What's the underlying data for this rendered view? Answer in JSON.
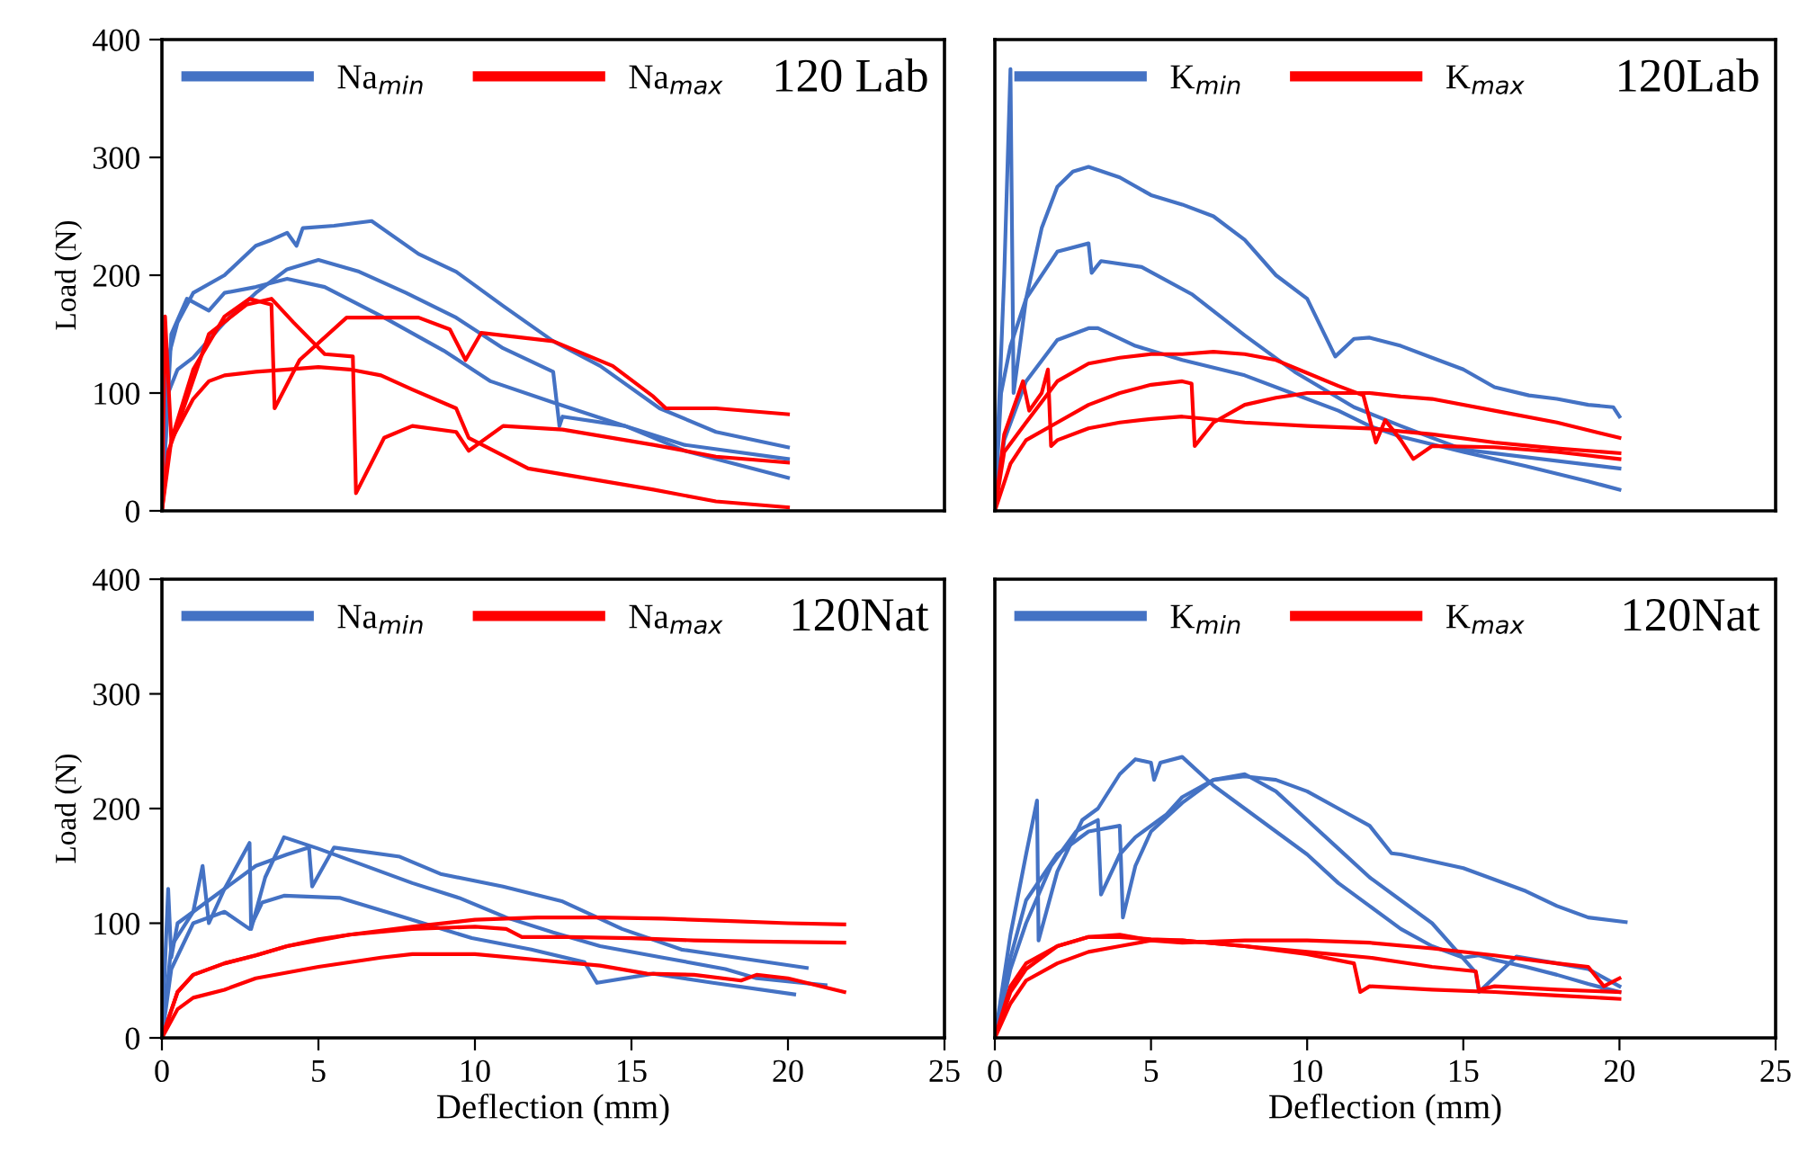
{
  "chart_data": [
    {
      "type": "line",
      "xlim": [
        0,
        25
      ],
      "ylim": [
        0,
        400
      ],
      "yticks": [
        0,
        100,
        200,
        300,
        400
      ],
      "ylabel": "Load (N)",
      "tick_labels": "y",
      "legend": "top left",
      "annotations": [
        "120 Lab"
      ],
      "series": [
        {
          "name": "Na$_{min}$",
          "color": "#4472c4",
          "x": [
            0,
            0.2,
            0.5,
            1,
            2,
            3,
            3.5,
            4,
            4.3,
            4.5,
            5.5,
            6.7,
            8.2,
            9.4,
            10.9,
            12.5,
            14,
            15.9,
            17.7,
            20
          ],
          "values": [
            0,
            130,
            160,
            185,
            200,
            225,
            230,
            236,
            225,
            240,
            242,
            246,
            218,
            203,
            174,
            144,
            123,
            87,
            67,
            54
          ]
        },
        {
          "color": "#4472c4",
          "x": [
            0,
            0.2,
            0.5,
            1,
            2,
            3,
            4,
            5,
            6.3,
            7.8,
            9.4,
            10.9,
            12.5,
            12.7,
            12.8,
            14.8,
            16.7,
            20
          ],
          "values": [
            0,
            100,
            120,
            130,
            160,
            185,
            205,
            213,
            203,
            185,
            164,
            138,
            118,
            72,
            80,
            72,
            56,
            44
          ]
        },
        {
          "color": "#4472c4",
          "x": [
            0,
            0.3,
            0.8,
            1.5,
            2,
            3,
            4,
            5.2,
            7.1,
            9,
            10.5,
            12.5,
            14.8,
            16.7,
            20
          ],
          "values": [
            0,
            150,
            180,
            170,
            185,
            190,
            197,
            190,
            164,
            136,
            110,
            92,
            72,
            51,
            28
          ]
        },
        {
          "name": "Na$_{max}$",
          "color": "#ff0000",
          "x": [
            0,
            0.1,
            0.3,
            1,
            2,
            2.8,
            3.5,
            3.6,
            4.4,
            5.9,
            8.2,
            9.2,
            9.7,
            10.2,
            12.5,
            14.4,
            15.7,
            16.1,
            17.7,
            20
          ],
          "values": [
            0,
            165,
            60,
            120,
            165,
            180,
            175,
            87,
            128,
            164,
            164,
            154,
            128,
            151,
            144,
            123,
            97,
            87,
            87,
            82
          ]
        },
        {
          "color": "#ff0000",
          "x": [
            0,
            0.2,
            0.6,
            1.5,
            2.7,
            3.5,
            4.2,
            5.2,
            6.1,
            6.2,
            7.1,
            8,
            9.4,
            9.8,
            10.9,
            12.8,
            15.7,
            17.7,
            20
          ],
          "values": [
            0,
            50,
            80,
            150,
            175,
            180,
            160,
            133,
            131,
            15,
            62,
            72,
            67,
            51,
            72,
            69,
            56,
            46,
            41
          ]
        },
        {
          "color": "#ff0000",
          "x": [
            0,
            0.3,
            1,
            1.5,
            2,
            3,
            4,
            5,
            6,
            7,
            8,
            9.4,
            9.8,
            11.7,
            15.7,
            17.7,
            20
          ],
          "values": [
            0,
            60,
            95,
            110,
            115,
            118,
            120,
            122,
            120,
            115,
            103,
            87,
            62,
            36,
            18,
            8,
            3
          ]
        }
      ]
    },
    {
      "type": "line",
      "xlim": [
        0,
        25
      ],
      "ylim": [
        0,
        400
      ],
      "tick_labels": false,
      "legend": "top left",
      "annotations": [
        "120Lab"
      ],
      "series": [
        {
          "name": "K$_{min}$",
          "color": "#4472c4",
          "x": [
            0,
            0.3,
            0.5,
            0.6,
            1,
            1.5,
            2,
            2.5,
            3,
            4,
            5,
            6,
            7,
            8,
            9,
            10,
            10.9,
            11.5,
            12,
            13,
            14,
            15,
            16,
            17.1,
            18,
            19,
            19.8,
            20
          ],
          "values": [
            0,
            200,
            375,
            100,
            180,
            240,
            275,
            288,
            292,
            283,
            268,
            260,
            250,
            230,
            200,
            180,
            131,
            146,
            147,
            140,
            130,
            120,
            105,
            98,
            95,
            90,
            88,
            80
          ]
        },
        {
          "color": "#4472c4",
          "x": [
            0,
            0.2,
            0.5,
            1,
            2,
            3,
            3.1,
            3.4,
            4.7,
            6.3,
            8,
            9.6,
            11.5,
            13,
            15,
            20
          ],
          "values": [
            0,
            100,
            140,
            180,
            220,
            227,
            202,
            212,
            207,
            184,
            149,
            118,
            88,
            72,
            52,
            36
          ]
        },
        {
          "color": "#4472c4",
          "x": [
            0,
            0.3,
            1,
            2,
            3,
            3.3,
            4.5,
            6,
            8,
            9.5,
            11,
            12,
            13,
            15,
            17,
            19,
            20
          ],
          "values": [
            0,
            60,
            110,
            145,
            155,
            155,
            140,
            128,
            115,
            100,
            85,
            72,
            63,
            50,
            38,
            25,
            18
          ]
        },
        {
          "name": "K$_{max}$",
          "color": "#ff0000",
          "x": [
            0,
            0.3,
            1,
            2,
            3,
            4,
            5,
            6,
            7,
            8,
            9,
            10,
            11,
            11.8,
            12.2,
            12.5,
            13,
            13.4,
            14,
            16,
            18,
            20
          ],
          "values": [
            0,
            50,
            75,
            110,
            125,
            130,
            133,
            133,
            135,
            133,
            128,
            117,
            106,
            98,
            58,
            77,
            60,
            44,
            55,
            54,
            50,
            44
          ]
        },
        {
          "color": "#ff0000",
          "x": [
            0,
            0.5,
            1,
            2,
            3,
            4,
            5,
            6,
            6.3,
            6.4,
            7,
            8,
            9,
            10,
            12,
            13,
            14,
            16,
            18,
            20
          ],
          "values": [
            0,
            40,
            60,
            75,
            90,
            100,
            107,
            110,
            108,
            55,
            75,
            90,
            96,
            100,
            100,
            97,
            95,
            85,
            75,
            62
          ]
        },
        {
          "color": "#ff0000",
          "x": [
            0,
            0.3,
            0.9,
            1.1,
            1.5,
            1.7,
            1.8,
            2,
            3,
            4,
            5,
            6,
            8,
            10,
            12,
            14,
            16,
            18,
            20
          ],
          "values": [
            0,
            65,
            110,
            85,
            100,
            120,
            55,
            60,
            70,
            75,
            78,
            80,
            75,
            72,
            70,
            65,
            58,
            53,
            49
          ]
        }
      ]
    },
    {
      "type": "line",
      "xlim": [
        0,
        25
      ],
      "xticks": [
        0,
        5,
        10,
        15,
        20,
        25
      ],
      "ylim": [
        0,
        400
      ],
      "yticks": [
        0,
        100,
        200,
        300,
        400
      ],
      "xlabel": "Deflection (mm)",
      "ylabel": "Load (N)",
      "legend": "top left",
      "annotations": [
        "120Nat"
      ],
      "series": [
        {
          "name": "Na$_{min}$",
          "color": "#4472c4",
          "x": [
            0,
            0.2,
            0.3,
            0.5,
            1,
            1.3,
            1.5,
            2,
            2.8,
            2.85,
            3.3,
            3.9,
            5,
            6,
            8,
            9.5,
            11,
            12.5,
            14,
            16,
            18,
            19,
            21.2
          ],
          "values": [
            0,
            130,
            70,
            100,
            110,
            150,
            100,
            130,
            170,
            95,
            140,
            175,
            165,
            155,
            135,
            122,
            105,
            92,
            80,
            70,
            60,
            52,
            46
          ]
        },
        {
          "color": "#4472c4",
          "x": [
            0,
            0.3,
            1,
            2,
            3,
            4,
            4.7,
            4.8,
            5.5,
            7.6,
            8.9,
            10.9,
            12.8,
            14.7,
            16.6,
            18.6,
            20.6
          ],
          "values": [
            0,
            80,
            110,
            130,
            150,
            160,
            166,
            132,
            166,
            158,
            143,
            132,
            119,
            95,
            77,
            69,
            61
          ]
        },
        {
          "color": "#4472c4",
          "x": [
            0,
            0.3,
            1,
            2,
            2.8,
            3.2,
            3.9,
            5.7,
            8,
            9.9,
            11.8,
            13.5,
            13.9,
            15.7,
            17.6,
            20.2
          ],
          "values": [
            0,
            60,
            100,
            110,
            95,
            118,
            124,
            122,
            103,
            87,
            77,
            66,
            48,
            56,
            48,
            38
          ]
        },
        {
          "name": "Na$_{max}$",
          "color": "#ff0000",
          "x": [
            0,
            0.5,
            1,
            2,
            3,
            4,
            5,
            6,
            8,
            10,
            12,
            14,
            16,
            18,
            20,
            21.8
          ],
          "values": [
            0,
            40,
            55,
            65,
            72,
            80,
            86,
            90,
            97,
            103,
            105,
            105,
            104,
            102,
            100,
            99
          ]
        },
        {
          "color": "#ff0000",
          "x": [
            0,
            0.5,
            1,
            2,
            3,
            4,
            5,
            6,
            8,
            10,
            11,
            11.5,
            13,
            15,
            17,
            19,
            21.8
          ],
          "values": [
            0,
            40,
            55,
            65,
            72,
            80,
            85,
            90,
            95,
            97,
            95,
            88,
            88,
            87,
            85,
            84,
            83
          ]
        },
        {
          "color": "#ff0000",
          "x": [
            0,
            0.5,
            1,
            2,
            3,
            5,
            7,
            8,
            10,
            12,
            14,
            15.5,
            17,
            18.5,
            19,
            20,
            21.8
          ],
          "values": [
            0,
            25,
            35,
            42,
            52,
            62,
            70,
            73,
            73,
            68,
            63,
            56,
            55,
            50,
            55,
            52,
            40
          ]
        }
      ]
    },
    {
      "type": "line",
      "xlim": [
        0,
        25
      ],
      "xticks": [
        0,
        5,
        10,
        15,
        20,
        25
      ],
      "ylim": [
        0,
        400
      ],
      "xlabel": "Deflection (mm)",
      "tick_labels": "x",
      "legend": "top left",
      "annotations": [
        "120Nat"
      ],
      "series": [
        {
          "name": "K$_{min}$",
          "color": "#4472c4",
          "x": [
            0,
            0.5,
            1,
            1.35,
            1.4,
            2,
            2.8,
            3.3,
            4,
            4.5,
            5,
            5.1,
            5.3,
            6,
            7,
            8,
            9,
            10,
            11,
            12,
            13,
            14,
            15,
            15.5,
            16,
            17,
            18,
            19,
            20
          ],
          "values": [
            0,
            90,
            160,
            207,
            85,
            145,
            190,
            200,
            230,
            243,
            240,
            225,
            240,
            245,
            220,
            200,
            180,
            160,
            135,
            115,
            95,
            80,
            70,
            72,
            68,
            62,
            55,
            47,
            40
          ]
        },
        {
          "color": "#4472c4",
          "x": [
            0,
            0.5,
            1,
            1.8,
            2.6,
            3.3,
            3.4,
            4,
            4.5,
            5.5,
            6,
            7,
            8,
            9,
            10,
            11,
            12,
            12.7,
            13,
            15,
            17,
            18,
            19,
            20.2
          ],
          "values": [
            0,
            60,
            100,
            150,
            180,
            190,
            125,
            160,
            175,
            195,
            210,
            225,
            228,
            225,
            215,
            200,
            185,
            161,
            160,
            148,
            128,
            115,
            105,
            101
          ]
        },
        {
          "color": "#4472c4",
          "x": [
            0,
            0.5,
            1,
            2,
            3,
            4,
            4.1,
            4.5,
            5,
            6,
            6.5,
            7,
            8,
            9,
            10,
            11,
            12,
            13,
            14,
            15.4,
            15.5,
            16.7,
            18,
            19,
            20
          ],
          "values": [
            0,
            70,
            120,
            160,
            180,
            185,
            105,
            150,
            180,
            205,
            215,
            225,
            230,
            215,
            190,
            165,
            140,
            120,
            100,
            57,
            40,
            71,
            65,
            60,
            45
          ]
        },
        {
          "name": "K$_{max}$",
          "color": "#ff0000",
          "x": [
            0,
            0.5,
            1,
            2,
            3,
            4,
            5,
            6,
            8,
            10,
            12,
            14,
            16,
            18,
            19,
            19.5,
            20
          ],
          "values": [
            0,
            45,
            65,
            80,
            88,
            90,
            85,
            83,
            85,
            85,
            83,
            78,
            72,
            65,
            62,
            45,
            52
          ]
        },
        {
          "color": "#ff0000",
          "x": [
            0,
            0.5,
            1,
            2,
            3,
            4,
            5,
            6,
            8,
            10,
            11.5,
            11.7,
            12,
            14,
            16,
            18,
            20
          ],
          "values": [
            0,
            30,
            50,
            65,
            75,
            80,
            85,
            85,
            80,
            73,
            65,
            40,
            45,
            42,
            40,
            37,
            34
          ]
        },
        {
          "color": "#ff0000",
          "x": [
            0,
            0.5,
            1,
            2,
            3,
            4,
            5,
            6,
            8,
            10,
            12,
            14,
            15.4,
            15.5,
            16,
            18,
            20
          ],
          "values": [
            0,
            40,
            60,
            80,
            88,
            88,
            86,
            85,
            80,
            75,
            70,
            62,
            58,
            42,
            45,
            42,
            40
          ]
        }
      ]
    }
  ]
}
